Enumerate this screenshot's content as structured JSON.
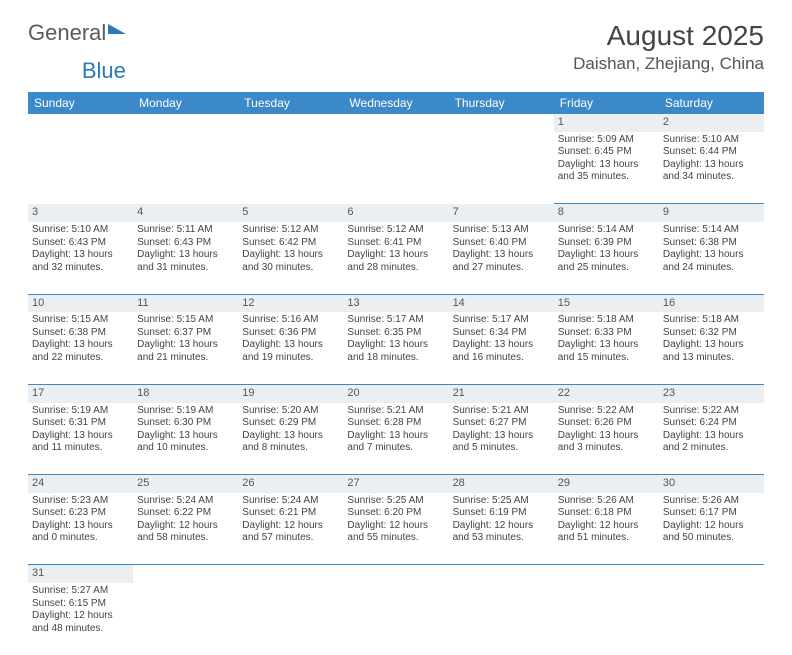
{
  "logo": {
    "part1": "General",
    "part2": "Blue"
  },
  "title": "August 2025",
  "location": "Daishan, Zhejiang, China",
  "colors": {
    "header_bg": "#3b89c9",
    "header_text": "#ffffff",
    "daynum_bg": "#eceff1",
    "cell_border": "#3b89c9",
    "text": "#444444",
    "logo_gray": "#5a5a5a",
    "logo_blue": "#2a7ab8",
    "page_bg": "#ffffff"
  },
  "typography": {
    "title_fontsize": 28,
    "location_fontsize": 17,
    "dayheader_fontsize": 12,
    "cell_fontsize": 10
  },
  "day_headers": [
    "Sunday",
    "Monday",
    "Tuesday",
    "Wednesday",
    "Thursday",
    "Friday",
    "Saturday"
  ],
  "weeks": [
    {
      "nums": [
        "",
        "",
        "",
        "",
        "",
        "1",
        "2"
      ],
      "cells": [
        null,
        null,
        null,
        null,
        null,
        {
          "sunrise": "Sunrise: 5:09 AM",
          "sunset": "Sunset: 6:45 PM",
          "day1": "Daylight: 13 hours",
          "day2": "and 35 minutes."
        },
        {
          "sunrise": "Sunrise: 5:10 AM",
          "sunset": "Sunset: 6:44 PM",
          "day1": "Daylight: 13 hours",
          "day2": "and 34 minutes."
        }
      ]
    },
    {
      "nums": [
        "3",
        "4",
        "5",
        "6",
        "7",
        "8",
        "9"
      ],
      "cells": [
        {
          "sunrise": "Sunrise: 5:10 AM",
          "sunset": "Sunset: 6:43 PM",
          "day1": "Daylight: 13 hours",
          "day2": "and 32 minutes."
        },
        {
          "sunrise": "Sunrise: 5:11 AM",
          "sunset": "Sunset: 6:43 PM",
          "day1": "Daylight: 13 hours",
          "day2": "and 31 minutes."
        },
        {
          "sunrise": "Sunrise: 5:12 AM",
          "sunset": "Sunset: 6:42 PM",
          "day1": "Daylight: 13 hours",
          "day2": "and 30 minutes."
        },
        {
          "sunrise": "Sunrise: 5:12 AM",
          "sunset": "Sunset: 6:41 PM",
          "day1": "Daylight: 13 hours",
          "day2": "and 28 minutes."
        },
        {
          "sunrise": "Sunrise: 5:13 AM",
          "sunset": "Sunset: 6:40 PM",
          "day1": "Daylight: 13 hours",
          "day2": "and 27 minutes."
        },
        {
          "sunrise": "Sunrise: 5:14 AM",
          "sunset": "Sunset: 6:39 PM",
          "day1": "Daylight: 13 hours",
          "day2": "and 25 minutes."
        },
        {
          "sunrise": "Sunrise: 5:14 AM",
          "sunset": "Sunset: 6:38 PM",
          "day1": "Daylight: 13 hours",
          "day2": "and 24 minutes."
        }
      ]
    },
    {
      "nums": [
        "10",
        "11",
        "12",
        "13",
        "14",
        "15",
        "16"
      ],
      "cells": [
        {
          "sunrise": "Sunrise: 5:15 AM",
          "sunset": "Sunset: 6:38 PM",
          "day1": "Daylight: 13 hours",
          "day2": "and 22 minutes."
        },
        {
          "sunrise": "Sunrise: 5:15 AM",
          "sunset": "Sunset: 6:37 PM",
          "day1": "Daylight: 13 hours",
          "day2": "and 21 minutes."
        },
        {
          "sunrise": "Sunrise: 5:16 AM",
          "sunset": "Sunset: 6:36 PM",
          "day1": "Daylight: 13 hours",
          "day2": "and 19 minutes."
        },
        {
          "sunrise": "Sunrise: 5:17 AM",
          "sunset": "Sunset: 6:35 PM",
          "day1": "Daylight: 13 hours",
          "day2": "and 18 minutes."
        },
        {
          "sunrise": "Sunrise: 5:17 AM",
          "sunset": "Sunset: 6:34 PM",
          "day1": "Daylight: 13 hours",
          "day2": "and 16 minutes."
        },
        {
          "sunrise": "Sunrise: 5:18 AM",
          "sunset": "Sunset: 6:33 PM",
          "day1": "Daylight: 13 hours",
          "day2": "and 15 minutes."
        },
        {
          "sunrise": "Sunrise: 5:18 AM",
          "sunset": "Sunset: 6:32 PM",
          "day1": "Daylight: 13 hours",
          "day2": "and 13 minutes."
        }
      ]
    },
    {
      "nums": [
        "17",
        "18",
        "19",
        "20",
        "21",
        "22",
        "23"
      ],
      "cells": [
        {
          "sunrise": "Sunrise: 5:19 AM",
          "sunset": "Sunset: 6:31 PM",
          "day1": "Daylight: 13 hours",
          "day2": "and 11 minutes."
        },
        {
          "sunrise": "Sunrise: 5:19 AM",
          "sunset": "Sunset: 6:30 PM",
          "day1": "Daylight: 13 hours",
          "day2": "and 10 minutes."
        },
        {
          "sunrise": "Sunrise: 5:20 AM",
          "sunset": "Sunset: 6:29 PM",
          "day1": "Daylight: 13 hours",
          "day2": "and 8 minutes."
        },
        {
          "sunrise": "Sunrise: 5:21 AM",
          "sunset": "Sunset: 6:28 PM",
          "day1": "Daylight: 13 hours",
          "day2": "and 7 minutes."
        },
        {
          "sunrise": "Sunrise: 5:21 AM",
          "sunset": "Sunset: 6:27 PM",
          "day1": "Daylight: 13 hours",
          "day2": "and 5 minutes."
        },
        {
          "sunrise": "Sunrise: 5:22 AM",
          "sunset": "Sunset: 6:26 PM",
          "day1": "Daylight: 13 hours",
          "day2": "and 3 minutes."
        },
        {
          "sunrise": "Sunrise: 5:22 AM",
          "sunset": "Sunset: 6:24 PM",
          "day1": "Daylight: 13 hours",
          "day2": "and 2 minutes."
        }
      ]
    },
    {
      "nums": [
        "24",
        "25",
        "26",
        "27",
        "28",
        "29",
        "30"
      ],
      "cells": [
        {
          "sunrise": "Sunrise: 5:23 AM",
          "sunset": "Sunset: 6:23 PM",
          "day1": "Daylight: 13 hours",
          "day2": "and 0 minutes."
        },
        {
          "sunrise": "Sunrise: 5:24 AM",
          "sunset": "Sunset: 6:22 PM",
          "day1": "Daylight: 12 hours",
          "day2": "and 58 minutes."
        },
        {
          "sunrise": "Sunrise: 5:24 AM",
          "sunset": "Sunset: 6:21 PM",
          "day1": "Daylight: 12 hours",
          "day2": "and 57 minutes."
        },
        {
          "sunrise": "Sunrise: 5:25 AM",
          "sunset": "Sunset: 6:20 PM",
          "day1": "Daylight: 12 hours",
          "day2": "and 55 minutes."
        },
        {
          "sunrise": "Sunrise: 5:25 AM",
          "sunset": "Sunset: 6:19 PM",
          "day1": "Daylight: 12 hours",
          "day2": "and 53 minutes."
        },
        {
          "sunrise": "Sunrise: 5:26 AM",
          "sunset": "Sunset: 6:18 PM",
          "day1": "Daylight: 12 hours",
          "day2": "and 51 minutes."
        },
        {
          "sunrise": "Sunrise: 5:26 AM",
          "sunset": "Sunset: 6:17 PM",
          "day1": "Daylight: 12 hours",
          "day2": "and 50 minutes."
        }
      ]
    },
    {
      "nums": [
        "31",
        "",
        "",
        "",
        "",
        "",
        ""
      ],
      "cells": [
        {
          "sunrise": "Sunrise: 5:27 AM",
          "sunset": "Sunset: 6:15 PM",
          "day1": "Daylight: 12 hours",
          "day2": "and 48 minutes."
        },
        null,
        null,
        null,
        null,
        null,
        null
      ]
    }
  ]
}
